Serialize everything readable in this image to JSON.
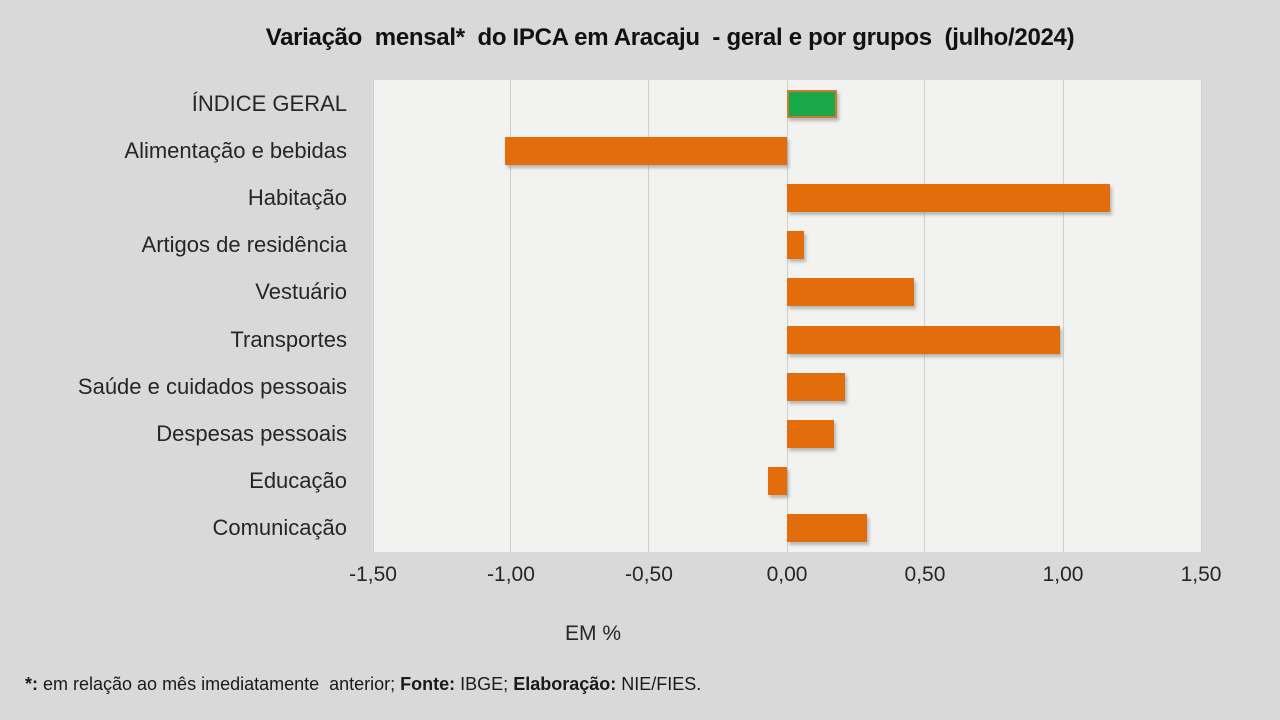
{
  "title": "Variação  mensal*  do IPCA em Aracaju  - geral e por grupos  (julho/2024)",
  "chart_data": {
    "type": "bar",
    "orientation": "horizontal",
    "title": "Variação  mensal*  do IPCA em Aracaju  - geral e por grupos  (julho/2024)",
    "categories": [
      "ÍNDICE GERAL",
      "Alimentação e bebidas",
      "Habitação",
      "Artigos de residência",
      "Vestuário",
      "Transportes",
      "Saúde e cuidados pessoais",
      "Despesas pessoais",
      "Educação",
      "Comunicação"
    ],
    "values": [
      0.18,
      -1.02,
      1.17,
      0.06,
      0.46,
      0.99,
      0.21,
      0.17,
      -0.07,
      0.29
    ],
    "highlight_index": 0,
    "xlim": [
      -1.5,
      1.5
    ],
    "xticks": [
      {
        "label": "-1,50",
        "value": -1.5
      },
      {
        "label": "-1,00",
        "value": -1.0
      },
      {
        "label": "-0,50",
        "value": -0.5
      },
      {
        "label": "0,00",
        "value": 0.0
      },
      {
        "label": "0,50",
        "value": 0.5
      },
      {
        "label": "1,00",
        "value": 1.0
      },
      {
        "label": "1,50",
        "value": 1.5
      }
    ],
    "xlabel": "EM %",
    "grid": "vertical-only",
    "legend": "none",
    "colors": {
      "bar": "#e26d0a",
      "highlight_fill": "#18a84a",
      "highlight_border": "#c87e2e",
      "background": "#d9d9d9",
      "plot_background": "#f2f2f1",
      "gridline": "#cfcfcc"
    }
  },
  "footnote": {
    "segments": [
      {
        "text": "*:",
        "bold": true
      },
      {
        "text": " em relação ao mês imediatamente  anterior; ",
        "bold": false
      },
      {
        "text": "Fonte:",
        "bold": true
      },
      {
        "text": " IBGE; ",
        "bold": false
      },
      {
        "text": "Elaboração:",
        "bold": true
      },
      {
        "text": " NIE/FIES.",
        "bold": false
      }
    ]
  }
}
